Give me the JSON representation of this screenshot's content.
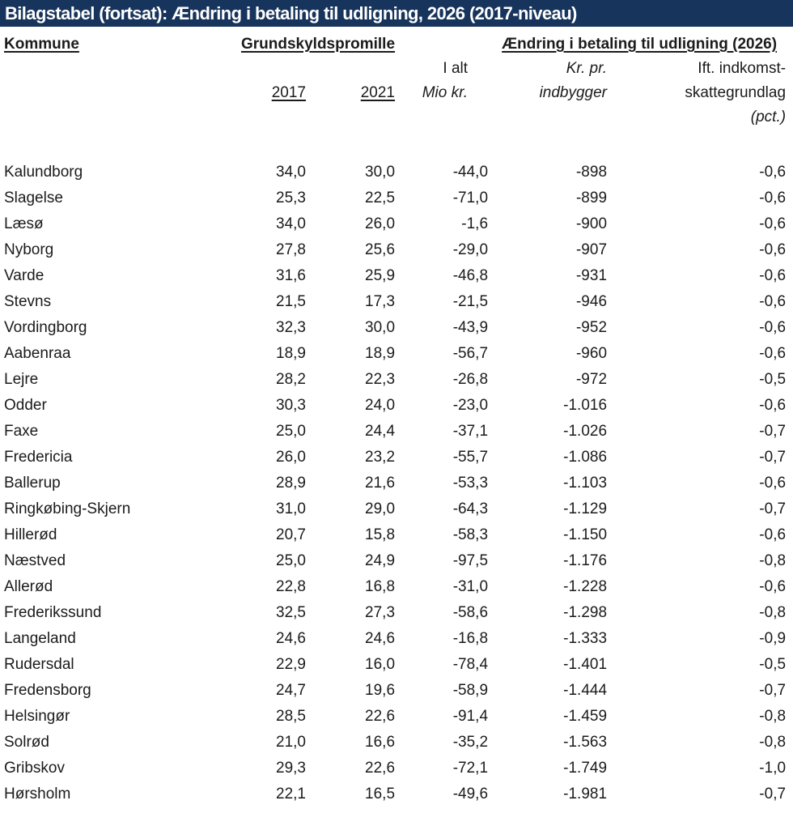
{
  "title": "Bilagstabel (fortsat): Ændring i betaling til udligning, 2026 (2017-niveau)",
  "colors": {
    "title_bar": "#17345c",
    "title_text": "#ffffff",
    "body_text": "#1b1b1b"
  },
  "table": {
    "header": {
      "kommune": "Kommune",
      "grundskyldspromille": "Grundskyldspromille",
      "aendring": "Ændring i betaling til udligning (2026)"
    },
    "subheader": {
      "y2017": "2017",
      "y2021": "2021",
      "i_alt": "I alt",
      "mio_kr": "Mio kr.",
      "kr_pr": "Kr. pr.",
      "indbygger": "indbygger",
      "ift_line1": "Ift. indkomst-",
      "ift_line2": "skattegrundlag",
      "ift_line3": "(pct.)"
    },
    "column_keys": [
      "kommune",
      "grundskyld_2017",
      "grundskyld_2021",
      "i_alt_mio_kr",
      "kr_pr_indbygger",
      "ift_indkomstskattegrundlag_pct"
    ],
    "rows": [
      [
        "Kalundborg",
        "34,0",
        "30,0",
        "-44,0",
        "-898",
        "-0,6"
      ],
      [
        "Slagelse",
        "25,3",
        "22,5",
        "-71,0",
        "-899",
        "-0,6"
      ],
      [
        "Læsø",
        "34,0",
        "26,0",
        "-1,6",
        "-900",
        "-0,6"
      ],
      [
        "Nyborg",
        "27,8",
        "25,6",
        "-29,0",
        "-907",
        "-0,6"
      ],
      [
        "Varde",
        "31,6",
        "25,9",
        "-46,8",
        "-931",
        "-0,6"
      ],
      [
        "Stevns",
        "21,5",
        "17,3",
        "-21,5",
        "-946",
        "-0,6"
      ],
      [
        "Vordingborg",
        "32,3",
        "30,0",
        "-43,9",
        "-952",
        "-0,6"
      ],
      [
        "Aabenraa",
        "18,9",
        "18,9",
        "-56,7",
        "-960",
        "-0,6"
      ],
      [
        "Lejre",
        "28,2",
        "22,3",
        "-26,8",
        "-972",
        "-0,5"
      ],
      [
        "Odder",
        "30,3",
        "24,0",
        "-23,0",
        "-1.016",
        "-0,6"
      ],
      [
        "Faxe",
        "25,0",
        "24,4",
        "-37,1",
        "-1.026",
        "-0,7"
      ],
      [
        "Fredericia",
        "26,0",
        "23,2",
        "-55,7",
        "-1.086",
        "-0,7"
      ],
      [
        "Ballerup",
        "28,9",
        "21,6",
        "-53,3",
        "-1.103",
        "-0,6"
      ],
      [
        "Ringkøbing-Skjern",
        "31,0",
        "29,0",
        "-64,3",
        "-1.129",
        "-0,7"
      ],
      [
        "Hillerød",
        "20,7",
        "15,8",
        "-58,3",
        "-1.150",
        "-0,6"
      ],
      [
        "Næstved",
        "25,0",
        "24,9",
        "-97,5",
        "-1.176",
        "-0,8"
      ],
      [
        "Allerød",
        "22,8",
        "16,8",
        "-31,0",
        "-1.228",
        "-0,6"
      ],
      [
        "Frederikssund",
        "32,5",
        "27,3",
        "-58,6",
        "-1.298",
        "-0,8"
      ],
      [
        "Langeland",
        "24,6",
        "24,6",
        "-16,8",
        "-1.333",
        "-0,9"
      ],
      [
        "Rudersdal",
        "22,9",
        "16,0",
        "-78,4",
        "-1.401",
        "-0,5"
      ],
      [
        "Fredensborg",
        "24,7",
        "19,6",
        "-58,9",
        "-1.444",
        "-0,7"
      ],
      [
        "Helsingør",
        "28,5",
        "22,6",
        "-91,4",
        "-1.459",
        "-0,8"
      ],
      [
        "Solrød",
        "21,0",
        "16,6",
        "-35,2",
        "-1.563",
        "-0,8"
      ],
      [
        "Gribskov",
        "29,3",
        "22,6",
        "-72,1",
        "-1.749",
        "-1,0"
      ],
      [
        "Hørsholm",
        "22,1",
        "16,5",
        "-49,6",
        "-1.981",
        "-0,7"
      ]
    ]
  }
}
